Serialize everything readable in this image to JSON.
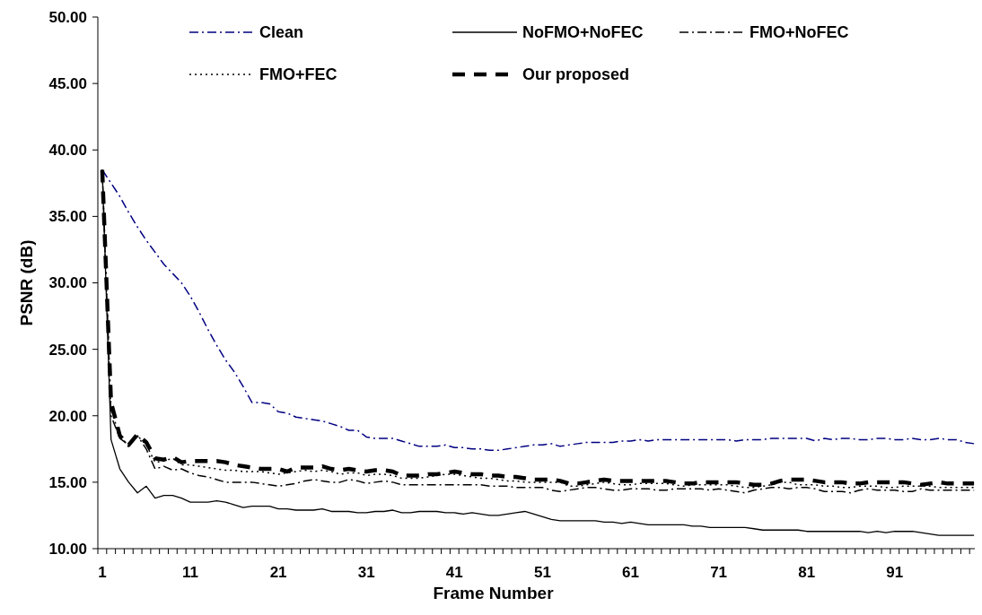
{
  "chart_data": {
    "type": "line",
    "xlabel": "Frame Number",
    "ylabel": "PSNR (dB)",
    "categories": [
      "1",
      null,
      null,
      null,
      null,
      null,
      null,
      null,
      null,
      null,
      "11",
      null,
      null,
      null,
      null,
      null,
      null,
      null,
      null,
      null,
      "21",
      null,
      null,
      null,
      null,
      null,
      null,
      null,
      null,
      null,
      "31",
      null,
      null,
      null,
      null,
      null,
      null,
      null,
      null,
      null,
      "41",
      null,
      null,
      null,
      null,
      null,
      null,
      null,
      null,
      null,
      "51",
      null,
      null,
      null,
      null,
      null,
      null,
      null,
      null,
      null,
      "61",
      null,
      null,
      null,
      null,
      null,
      null,
      null,
      null,
      null,
      "71",
      null,
      null,
      null,
      null,
      null,
      null,
      null,
      null,
      null,
      "81",
      null,
      null,
      null,
      null,
      null,
      null,
      null,
      null,
      null,
      "91",
      null,
      null,
      null,
      null,
      null,
      null,
      null,
      null,
      null
    ],
    "ylim": [
      10,
      50
    ],
    "yticks": [
      {
        "value": 10,
        "label": "10.00"
      },
      {
        "value": 15,
        "label": "15.00"
      },
      {
        "value": 20,
        "label": "20.00"
      },
      {
        "value": 25,
        "label": "25.00"
      },
      {
        "value": 30,
        "label": "30.00"
      },
      {
        "value": 35,
        "label": "35.00"
      },
      {
        "value": 40,
        "label": "40.00"
      },
      {
        "value": 45,
        "label": "45.00"
      },
      {
        "value": 50,
        "label": "50.00"
      }
    ],
    "grid": false,
    "legend": "top",
    "marker": "none",
    "series": [
      {
        "name": "Clean",
        "color": "#000080",
        "line_style": "dashdot",
        "values": [
          38.5,
          37.5,
          36.5,
          35.3,
          34.2,
          33.2,
          32.3,
          31.4,
          30.7,
          30.0,
          29.0,
          27.8,
          26.5,
          25.3,
          24.2,
          23.3,
          22.2,
          21.0,
          21.0,
          20.9,
          20.3,
          20.2,
          19.9,
          19.8,
          19.7,
          19.6,
          19.4,
          19.2,
          18.9,
          18.9,
          18.4,
          18.3,
          18.3,
          18.3,
          18.1,
          17.9,
          17.7,
          17.7,
          17.7,
          17.8,
          17.6,
          17.6,
          17.5,
          17.5,
          17.4,
          17.4,
          17.5,
          17.6,
          17.7,
          17.8,
          17.8,
          17.9,
          17.7,
          17.8,
          17.9,
          18.0,
          18.0,
          18.0,
          18.0,
          18.1,
          18.1,
          18.2,
          18.1,
          18.2,
          18.2,
          18.2,
          18.2,
          18.2,
          18.2,
          18.2,
          18.2,
          18.2,
          18.1,
          18.2,
          18.2,
          18.2,
          18.3,
          18.3,
          18.3,
          18.3,
          18.3,
          18.1,
          18.3,
          18.2,
          18.3,
          18.3,
          18.2,
          18.2,
          18.3,
          18.3,
          18.2,
          18.2,
          18.3,
          18.2,
          18.2,
          18.3,
          18.2,
          18.2,
          18.0,
          17.9
        ]
      },
      {
        "name": "NoFMO+NoFEC",
        "color": "#000000",
        "line_style": "solid",
        "values": [
          38.5,
          18.2,
          16.0,
          15.0,
          14.2,
          14.7,
          13.8,
          14.0,
          14.0,
          13.8,
          13.5,
          13.5,
          13.5,
          13.6,
          13.5,
          13.3,
          13.1,
          13.2,
          13.2,
          13.2,
          13.0,
          13.0,
          12.9,
          12.9,
          12.9,
          13.0,
          12.8,
          12.8,
          12.8,
          12.7,
          12.7,
          12.8,
          12.8,
          12.9,
          12.7,
          12.7,
          12.8,
          12.8,
          12.8,
          12.7,
          12.7,
          12.6,
          12.7,
          12.6,
          12.5,
          12.5,
          12.6,
          12.7,
          12.8,
          12.6,
          12.4,
          12.2,
          12.1,
          12.1,
          12.1,
          12.1,
          12.1,
          12.0,
          12.0,
          11.9,
          12.0,
          11.9,
          11.8,
          11.8,
          11.8,
          11.8,
          11.8,
          11.7,
          11.7,
          11.6,
          11.6,
          11.6,
          11.6,
          11.6,
          11.5,
          11.4,
          11.4,
          11.4,
          11.4,
          11.4,
          11.3,
          11.3,
          11.3,
          11.3,
          11.3,
          11.3,
          11.3,
          11.2,
          11.3,
          11.2,
          11.3,
          11.3,
          11.3,
          11.2,
          11.1,
          11.0,
          11.0,
          11.0,
          11.0,
          11.0
        ]
      },
      {
        "name": "FMO+NoFEC",
        "color": "#000000",
        "line_style": "dashdot",
        "values": [
          38.5,
          20.0,
          18.3,
          17.8,
          18.5,
          17.5,
          16.0,
          16.2,
          15.9,
          16.0,
          15.7,
          15.5,
          15.4,
          15.2,
          15.0,
          15.0,
          15.0,
          15.0,
          14.9,
          14.8,
          14.7,
          14.8,
          14.9,
          15.1,
          15.2,
          15.1,
          15.0,
          15.0,
          15.2,
          15.1,
          14.9,
          15.0,
          15.1,
          15.0,
          14.8,
          14.8,
          14.8,
          14.8,
          14.8,
          14.8,
          14.8,
          14.8,
          14.8,
          14.8,
          14.7,
          14.7,
          14.7,
          14.6,
          14.6,
          14.6,
          14.6,
          14.4,
          14.3,
          14.4,
          14.5,
          14.6,
          14.6,
          14.5,
          14.4,
          14.4,
          14.5,
          14.5,
          14.5,
          14.4,
          14.4,
          14.5,
          14.5,
          14.5,
          14.5,
          14.4,
          14.5,
          14.4,
          14.3,
          14.2,
          14.4,
          14.5,
          14.6,
          14.6,
          14.5,
          14.6,
          14.6,
          14.5,
          14.3,
          14.3,
          14.3,
          14.2,
          14.4,
          14.5,
          14.4,
          14.4,
          14.4,
          14.3,
          14.3,
          14.5,
          14.4,
          14.4,
          14.4,
          14.4,
          14.4,
          14.4
        ]
      },
      {
        "name": "FMO+FEC",
        "color": "#000000",
        "line_style": "dotted",
        "values": [
          38.5,
          20.5,
          18.4,
          17.8,
          18.5,
          17.8,
          16.5,
          16.6,
          16.8,
          16.3,
          16.3,
          16.2,
          16.1,
          16.0,
          15.9,
          15.9,
          15.8,
          15.8,
          15.8,
          15.7,
          15.6,
          15.7,
          15.8,
          15.9,
          15.8,
          15.9,
          15.8,
          15.6,
          15.7,
          15.7,
          15.5,
          15.6,
          15.6,
          15.5,
          15.3,
          15.3,
          15.3,
          15.4,
          15.5,
          15.6,
          15.6,
          15.5,
          15.4,
          15.3,
          15.3,
          15.2,
          15.1,
          15.1,
          15.0,
          15.0,
          15.0,
          15.0,
          15.0,
          14.7,
          14.7,
          14.8,
          14.9,
          15.0,
          14.9,
          14.8,
          14.8,
          14.9,
          14.9,
          14.9,
          14.9,
          14.8,
          14.7,
          14.8,
          14.8,
          14.8,
          14.8,
          14.8,
          14.7,
          14.6,
          14.6,
          14.7,
          14.8,
          15.0,
          15.0,
          14.8,
          14.8,
          14.8,
          14.7,
          14.7,
          14.6,
          14.6,
          14.7,
          14.7,
          14.7,
          14.6,
          14.6,
          14.7,
          14.7,
          14.7,
          14.7,
          14.6,
          14.6,
          14.6,
          14.6,
          14.6
        ]
      },
      {
        "name": "Our proposed",
        "color": "#000000",
        "line_style": "dashed",
        "values": [
          38.5,
          21.0,
          18.5,
          17.8,
          18.6,
          18.0,
          16.8,
          16.7,
          16.9,
          16.5,
          16.6,
          16.6,
          16.6,
          16.6,
          16.5,
          16.3,
          16.2,
          16.1,
          16.0,
          16.0,
          16.0,
          15.8,
          16.1,
          16.1,
          16.1,
          16.2,
          16.0,
          15.9,
          16.0,
          15.9,
          15.8,
          15.9,
          15.9,
          15.8,
          15.5,
          15.5,
          15.5,
          15.6,
          15.6,
          15.7,
          15.8,
          15.7,
          15.6,
          15.6,
          15.5,
          15.5,
          15.4,
          15.4,
          15.3,
          15.2,
          15.2,
          15.2,
          15.1,
          14.9,
          14.9,
          15.0,
          15.1,
          15.2,
          15.1,
          15.1,
          15.1,
          15.1,
          15.1,
          15.1,
          15.1,
          15.0,
          14.9,
          14.9,
          15.0,
          15.0,
          15.0,
          15.0,
          15.0,
          14.9,
          14.8,
          14.8,
          14.9,
          15.1,
          15.2,
          15.2,
          15.2,
          15.1,
          15.0,
          15.0,
          15.0,
          14.9,
          14.9,
          15.0,
          15.0,
          15.0,
          15.0,
          15.0,
          14.9,
          14.8,
          14.9,
          15.0,
          14.9,
          14.9,
          14.9,
          14.9
        ]
      }
    ]
  }
}
